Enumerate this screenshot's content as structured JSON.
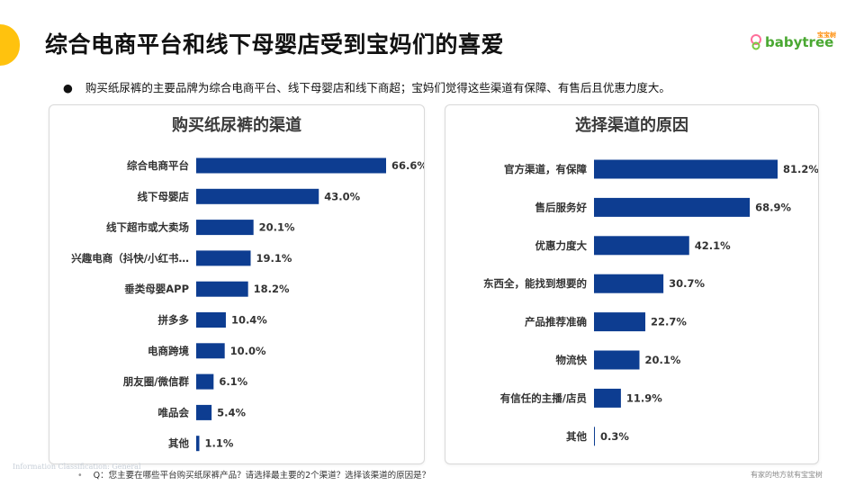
{
  "page": {
    "title": "综合电商平台和线下母婴店受到宝妈们的喜爱",
    "bullet": "购买纸尿裤的主要品牌为综合电商平台、线下母婴店和线下商超；宝妈们觉得这些渠道有保障、有售后且优惠力度大。",
    "footnote": "Q：您主要在哪些平台购买纸尿裤产品？请选择最主要的2个渠道？选择该渠道的原因是？",
    "watermark": "Information Classification: General",
    "slogan": "有家的地方就有宝宝树",
    "logo_text": "babytree",
    "logo_cn": "宝宝树",
    "accent_color": "#ffc20e",
    "bar_color": "#0d3d91"
  },
  "chart_data": [
    {
      "type": "bar",
      "orientation": "horizontal",
      "title": "购买纸尿裤的渠道",
      "categories": [
        "综合电商平台",
        "线下母婴店",
        "线下超市或大卖场",
        "兴趣电商（抖快/小红书…",
        "垂类母婴APP",
        "拼多多",
        "电商跨境",
        "朋友圈/微信群",
        "唯品会",
        "其他"
      ],
      "values": [
        66.6,
        43.0,
        20.1,
        19.1,
        18.2,
        10.4,
        10.0,
        6.1,
        5.4,
        1.1
      ],
      "value_labels": [
        "66.6%",
        "43.0%",
        "20.1%",
        "19.1%",
        "18.2%",
        "10.4%",
        "10.0%",
        "6.1%",
        "5.4%",
        "1.1%"
      ],
      "unit": "%",
      "xlim": [
        0,
        66.6
      ]
    },
    {
      "type": "bar",
      "orientation": "horizontal",
      "title": "选择渠道的原因",
      "categories": [
        "官方渠道，有保障",
        "售后服务好",
        "优惠力度大",
        "东西全，能找到想要的",
        "产品推荐准确",
        "物流快",
        "有信任的主播/店员",
        "其他"
      ],
      "values": [
        81.2,
        68.9,
        42.1,
        30.7,
        22.7,
        20.1,
        11.9,
        0.3
      ],
      "value_labels": [
        "81.2%",
        "68.9%",
        "42.1%",
        "30.7%",
        "22.7%",
        "20.1%",
        "11.9%",
        "0.3%"
      ],
      "unit": "%",
      "xlim": [
        0,
        81.2
      ]
    }
  ]
}
